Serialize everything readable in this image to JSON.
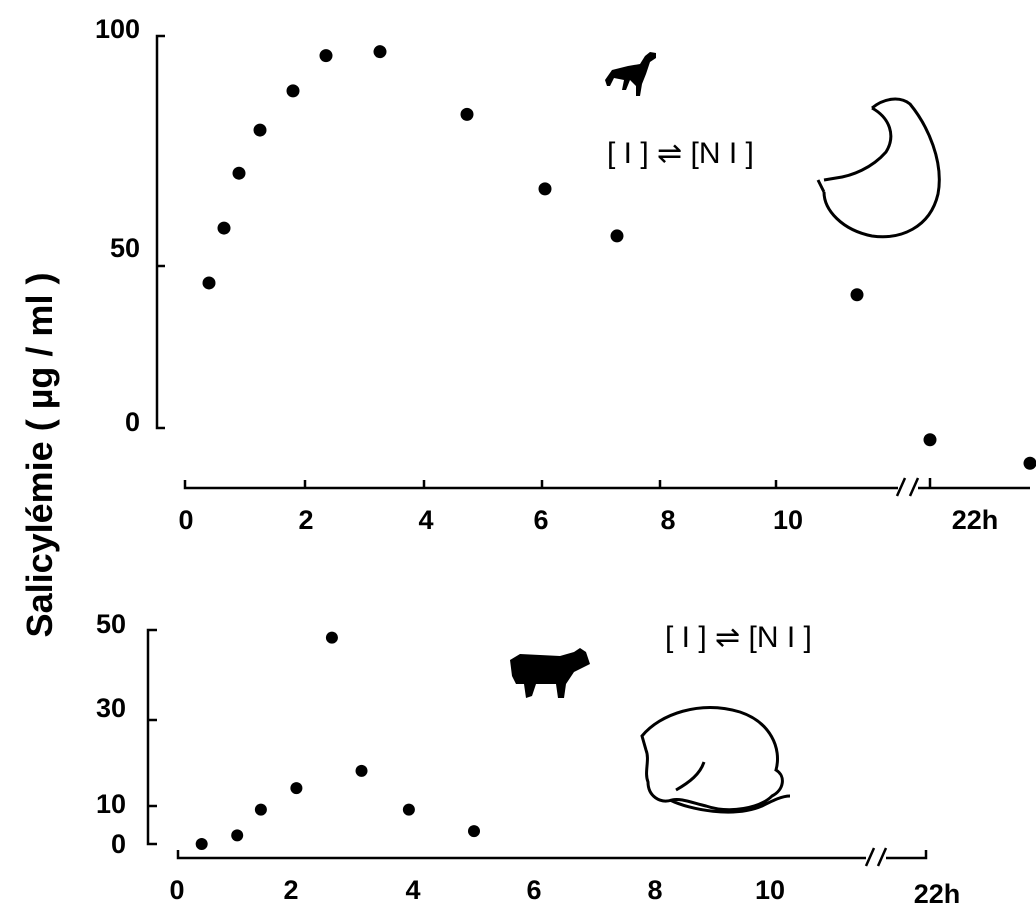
{
  "chart_data": [
    {
      "type": "scatter",
      "panel": "top",
      "ylabel": "Salicylémie ( µg / ml )",
      "y_ticks": [
        "100",
        "50",
        "0"
      ],
      "x_ticks": [
        "0",
        "2",
        "4",
        "6",
        "8",
        "10",
        "22h"
      ],
      "ylim": [
        0,
        100
      ],
      "xlim": [
        0,
        12
      ],
      "x_axis_break": true,
      "formula": "[ I ] ⇌ [N I ]",
      "series": [
        {
          "points": [
            {
              "x": 0.4,
              "y": 37
            },
            {
              "x": 0.65,
              "y": 51
            },
            {
              "x": 0.9,
              "y": 65
            },
            {
              "x": 1.25,
              "y": 76
            },
            {
              "x": 1.8,
              "y": 86
            },
            {
              "x": 2.35,
              "y": 95
            },
            {
              "x": 3.25,
              "y": 96
            },
            {
              "x": 4.7,
              "y": 80
            },
            {
              "x": 6.0,
              "y": 61
            },
            {
              "x": 7.2,
              "y": 49
            },
            {
              "x": 11.2,
              "y": 34
            },
            {
              "x": 22,
              "y": -3
            },
            {
              "x": 24,
              "y": -9
            }
          ]
        }
      ]
    },
    {
      "type": "scatter",
      "panel": "bottom",
      "y_ticks": [
        "50",
        "30",
        "10",
        "0"
      ],
      "x_ticks": [
        "0",
        "2",
        "4",
        "6",
        "8",
        "10",
        "22h"
      ],
      "ylim": [
        0,
        50
      ],
      "xlim": [
        0,
        12
      ],
      "x_axis_break": true,
      "formula": "[ I ] ⇌ [N I ]",
      "series": [
        {
          "points": [
            {
              "x": 0.4,
              "y": 0
            },
            {
              "x": 1.0,
              "y": 2
            },
            {
              "x": 1.4,
              "y": 8
            },
            {
              "x": 2.0,
              "y": 13
            },
            {
              "x": 2.6,
              "y": 48
            },
            {
              "x": 3.1,
              "y": 17
            },
            {
              "x": 3.9,
              "y": 8
            },
            {
              "x": 5.0,
              "y": 3
            }
          ]
        }
      ]
    }
  ],
  "icons": [
    "dog-icon",
    "stomach-icon",
    "cow-icon",
    "rumen-icon"
  ]
}
